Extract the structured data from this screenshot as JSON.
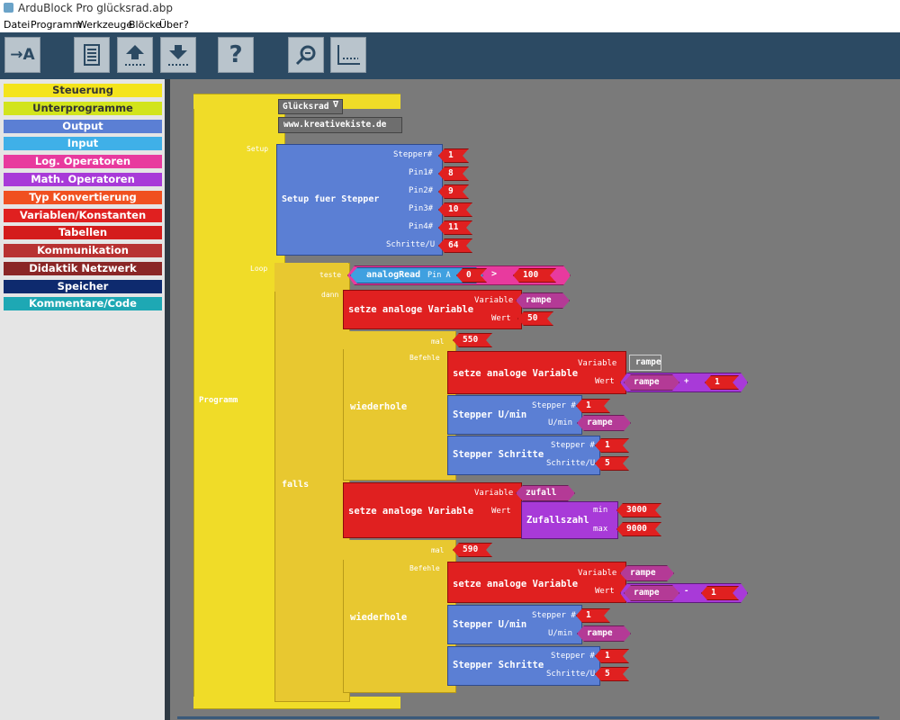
{
  "window": {
    "title": "ArduBlock Pro glücksrad.abp"
  },
  "menu": {
    "items": [
      "Datei",
      "Programm",
      "Werkzeuge",
      "Blöcke",
      "Über",
      "?"
    ]
  },
  "toolbar": {
    "buttons": [
      "upload-to-arduino",
      "serial-monitor",
      "save-file",
      "open-file",
      "help",
      "zoom",
      "code-view"
    ],
    "icons": {
      "upload": "→A",
      "help": "?"
    }
  },
  "palette": {
    "categories": [
      {
        "label": "Steuerung",
        "color": "#f4e41c",
        "text_color": "#333333"
      },
      {
        "label": "Unterprogramme",
        "color": "#d2e41c",
        "text_color": "#333333"
      },
      {
        "label": "Output",
        "color": "#5b7fd4",
        "text_color": "#ffffff"
      },
      {
        "label": "Input",
        "color": "#3fb0e8",
        "text_color": "#ffffff"
      },
      {
        "label": "Log. Operatoren",
        "color": "#e83a9e",
        "text_color": "#ffffff"
      },
      {
        "label": "Math. Operatoren",
        "color": "#a83ad8",
        "text_color": "#ffffff"
      },
      {
        "label": "Typ Konvertierung",
        "color": "#f05020",
        "text_color": "#ffffff"
      },
      {
        "label": "Variablen/Konstanten",
        "color": "#e02020",
        "text_color": "#ffffff"
      },
      {
        "label": "Tabellen",
        "color": "#d41c1c",
        "text_color": "#ffffff"
      },
      {
        "label": "Kommunikation",
        "color": "#b83232",
        "text_color": "#ffffff"
      },
      {
        "label": "Didaktik Netzwerk",
        "color": "#8a2626",
        "text_color": "#ffffff"
      },
      {
        "label": "Speicher",
        "color": "#0e2a6e",
        "text_color": "#ffffff"
      },
      {
        "label": "Kommentare/Code",
        "color": "#1ea8b4",
        "text_color": "#ffffff"
      }
    ]
  },
  "program": {
    "label": "Programm",
    "name_value": "Glücksrad",
    "name_dropdown": "∇",
    "comment_value": "www.kreativekiste.de",
    "setup_label": "Setup",
    "loop_label": "Loop",
    "setup_block": {
      "title": "Setup fuer Stepper",
      "params": [
        {
          "label": "Stepper#",
          "value": "1"
        },
        {
          "label": "Pin1#",
          "value": "8"
        },
        {
          "label": "Pin2#",
          "value": "9"
        },
        {
          "label": "Pin3#",
          "value": "10"
        },
        {
          "label": "Pin4#",
          "value": "11"
        },
        {
          "label": "Schritte/U",
          "value": "64"
        }
      ]
    },
    "if_block": {
      "title": "falls",
      "test_label": "teste",
      "then_label": "dann",
      "condition": {
        "read_label": "analogRead",
        "pin_label": "Pin A",
        "pin_value": "0",
        "operator": ">",
        "compare_value": "100"
      },
      "set_var1": {
        "title": "setze analoge Variable",
        "var_label": "Variable",
        "var_value": "rampe",
        "val_label": "Wert",
        "val_value": "50"
      },
      "repeat1": {
        "title": "wiederhole",
        "times_label": "mal",
        "times_value": "550",
        "cmds_label": "Befehle",
        "set_var": {
          "title": "setze analoge Variable",
          "var_label": "Variable",
          "var_value": "rampe",
          "val_label": "Wert",
          "expr_var": "rampe",
          "expr_op": "+",
          "expr_num": "1"
        },
        "stepper_speed": {
          "title": "Stepper U/min",
          "stepper_label": "Stepper #",
          "stepper_value": "1",
          "rpm_label": "U/min",
          "rpm_value": "rampe"
        },
        "stepper_steps": {
          "title": "Stepper Schritte",
          "stepper_label": "Stepper #",
          "stepper_value": "1",
          "steps_label": "Schritte/U",
          "steps_value": "5"
        }
      },
      "set_var2": {
        "title": "setze analoge Variable",
        "var_label": "Variable",
        "var_value": "zufall",
        "val_label": "Wert",
        "random_title": "Zufallszahl",
        "min_label": "min",
        "min_value": "3000",
        "max_label": "max",
        "max_value": "9000"
      },
      "repeat2": {
        "title": "wiederhole",
        "times_label": "mal",
        "times_value": "590",
        "cmds_label": "Befehle",
        "set_var": {
          "title": "setze analoge Variable",
          "var_label": "Variable",
          "var_value": "rampe",
          "val_label": "Wert",
          "expr_var": "rampe",
          "expr_op": "-",
          "expr_num": "1"
        },
        "stepper_speed": {
          "title": "Stepper U/min",
          "stepper_label": "Stepper #",
          "stepper_value": "1",
          "rpm_label": "U/min",
          "rpm_value": "rampe"
        },
        "stepper_steps": {
          "title": "Stepper Schritte",
          "stepper_label": "Stepper #",
          "stepper_value": "1",
          "steps_label": "Schritte/U",
          "steps_value": "5"
        }
      }
    }
  },
  "colors": {
    "yellow": "#f0dc28",
    "output_blue": "#5b7fd4",
    "red": "#e02020",
    "purple": "#b43a96",
    "workspace": "#7a7a7a"
  }
}
